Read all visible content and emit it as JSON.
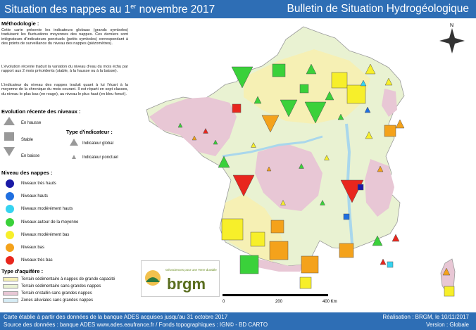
{
  "header": {
    "title_main": "Situation des nappes au 1",
    "title_sup": "er",
    "title_end": " novembre 2017",
    "subtitle": "Bulletin de Situation Hydrogéologique"
  },
  "legend": {
    "methodologie_title": "Méthodologie :",
    "methodologie_p1": "Cette carte présente les indicateurs globaux (grands symboles) traduisent les fluctuations moyennes des nappes. Ces derniers sont intégrateurs d'indicateurs ponctuels (petits symboles) correspondant à des points de surveillance du niveau des nappes (piézomètres).",
    "methodologie_p2": "L'évolution récente traduit la variation du niveau d'eau du mois échu par rapport aux 2 mois précédents (stable, à la hausse ou à la baisse).",
    "methodologie_p3": "L'indicateur du niveau des nappes traduit quant à lui l'écart à la moyenne de la chronique du mois courant. Il est réparti en sept classes, du niveau le plus bas (en rouge), au niveau le plus haut (en bleu foncé).",
    "evolution_title": "Evolution récente des niveaux :",
    "evolution_items": [
      "En hausse",
      "Stable",
      "En baisse"
    ],
    "type_title": "Type d'indicateur :",
    "type_items": [
      "Indicateur global",
      "Indicateur ponctuel"
    ],
    "niveau_title": "Niveau des nappes :",
    "niveau_items": [
      {
        "label": "Niveaux très hauts",
        "color": "#1a1aa6"
      },
      {
        "label": "Niveaux hauts",
        "color": "#1f6fe0"
      },
      {
        "label": "Niveaux modérément hauts",
        "color": "#35d3f0"
      },
      {
        "label": "Niveaux autour de la moyenne",
        "color": "#3ad13a"
      },
      {
        "label": "Niveaux modérément bas",
        "color": "#f7ef2a"
      },
      {
        "label": "Niveaux bas",
        "color": "#f4a21b"
      },
      {
        "label": "Niveaux très bas",
        "color": "#e8261d"
      }
    ],
    "aquifere_title": "Type d'aquifère :",
    "aquifere_items": [
      {
        "label": "Terrain sédimentaire à nappes de grande capacité",
        "color": "#f6f0b4"
      },
      {
        "label": "Terrain sédimentaire sans grandes nappes",
        "color": "#e9f2d2"
      },
      {
        "label": "Terrain cristallin sans grandes nappes",
        "color": "#e8c7d5"
      },
      {
        "label": "Zones alluviales sans grandes nappes",
        "color": "#d6ecf5"
      }
    ]
  },
  "scale": {
    "labels": [
      "0",
      "200",
      "400 Km"
    ]
  },
  "compass": {
    "north_label": "N"
  },
  "logo": {
    "tagline": "Géosciences pour une Terre durable",
    "name": "brgm"
  },
  "footer": {
    "line1_left": "Carte établie à partir des données de la banque ADES acquises jusqu'au 31 octobre 2017",
    "line2_left": "Source des données : banque ADES www.ades.eaufrance.fr / Fonds topographiques : IGN© - BD CARTO",
    "line1_right": "Réalisation : BRGM, le 10/11/2017",
    "line2_right": "Version : Globale"
  },
  "colors": {
    "header_bg": "#2e6eb5",
    "sea": "#ffffff"
  }
}
